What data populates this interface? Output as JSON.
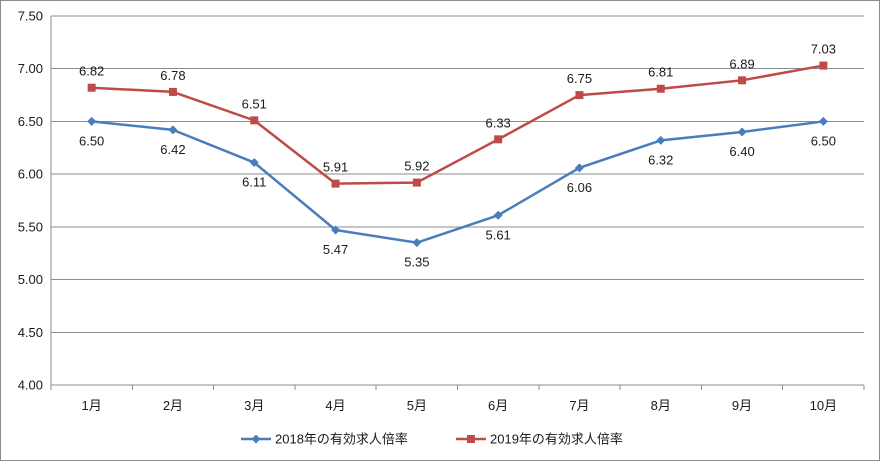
{
  "chart_data": {
    "type": "line",
    "categories": [
      "1月",
      "2月",
      "3月",
      "4月",
      "5月",
      "6月",
      "7月",
      "8月",
      "9月",
      "10月"
    ],
    "series": [
      {
        "name": "2018年の有効求人倍率",
        "values": [
          6.5,
          6.42,
          6.11,
          5.47,
          5.35,
          5.61,
          6.06,
          6.32,
          6.4,
          6.5
        ],
        "labels": [
          "6.50",
          "6.42",
          "6.11",
          "5.47",
          "5.35",
          "5.61",
          "6.06",
          "6.32",
          "6.40",
          "6.50"
        ],
        "color": "#4a7ebb",
        "marker": "diamond",
        "label_position": "below"
      },
      {
        "name": "2019年の有効求人倍率",
        "values": [
          6.82,
          6.78,
          6.51,
          5.91,
          5.92,
          6.33,
          6.75,
          6.81,
          6.89,
          7.03
        ],
        "labels": [
          "6.82",
          "6.78",
          "6.51",
          "5.91",
          "5.92",
          "6.33",
          "6.75",
          "6.81",
          "6.89",
          "7.03"
        ],
        "color": "#be4b48",
        "marker": "square",
        "label_position": "above"
      }
    ],
    "ylim": [
      4.0,
      7.5
    ],
    "yticks": [
      "4.00",
      "4.50",
      "5.00",
      "5.50",
      "6.00",
      "6.50",
      "7.00",
      "7.50"
    ],
    "grid": true,
    "legend": "bottom",
    "title": "",
    "xlabel": "",
    "ylabel": ""
  }
}
